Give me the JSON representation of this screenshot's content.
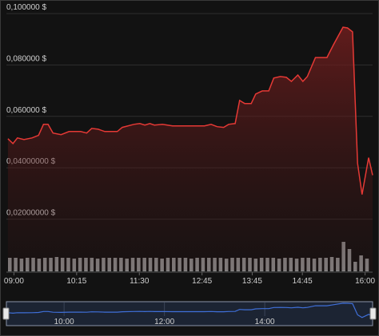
{
  "chart_data": {
    "type": "area",
    "xlim": [
      8.85,
      16.15
    ],
    "xticks": [
      {
        "value": 9,
        "label": "09:00"
      },
      {
        "value": 10.25,
        "label": "10:15"
      },
      {
        "value": 11.5,
        "label": "11:30"
      },
      {
        "value": 12.75,
        "label": "12:45"
      },
      {
        "value": 13.75,
        "label": "13:45"
      },
      {
        "value": 14.75,
        "label": "14:45"
      },
      {
        "value": 16,
        "label": "16:00"
      }
    ],
    "ylim": [
      0.0,
      0.1015
    ],
    "yticks": [
      {
        "value": 0.02,
        "label": "0,02000000 $"
      },
      {
        "value": 0.04,
        "label": "0,04000000 $"
      },
      {
        "value": 0.06,
        "label": "0,060000 $"
      },
      {
        "value": 0.08,
        "label": "0,080000 $"
      },
      {
        "value": 0.1,
        "label": "0,100000 $"
      }
    ],
    "grid": true,
    "series": [
      {
        "color": "#e53935",
        "x": [
          8.88,
          8.98,
          9.07,
          9.2,
          9.36,
          9.49,
          9.59,
          9.68,
          9.78,
          9.94,
          10.1,
          10.33,
          10.45,
          10.55,
          10.68,
          10.81,
          11.06,
          11.16,
          11.39,
          11.51,
          11.61,
          11.71,
          11.8,
          11.96,
          12.16,
          12.8,
          12.93,
          13.05,
          13.18,
          13.28,
          13.41,
          13.5,
          13.6,
          13.73,
          13.82,
          13.95,
          14.08,
          14.18,
          14.31,
          14.43,
          14.53,
          14.66,
          14.76,
          14.85,
          15.01,
          15.14,
          15.24,
          15.37,
          15.56,
          15.65,
          15.75,
          15.85,
          15.94,
          16.07,
          16.15
        ],
        "values": [
          0.0513,
          0.0494,
          0.0516,
          0.051,
          0.0516,
          0.0526,
          0.0569,
          0.0569,
          0.0535,
          0.0529,
          0.0541,
          0.0541,
          0.0535,
          0.0553,
          0.055,
          0.0541,
          0.0541,
          0.0557,
          0.0569,
          0.0572,
          0.0566,
          0.0572,
          0.0566,
          0.0569,
          0.0563,
          0.0563,
          0.0569,
          0.056,
          0.0557,
          0.0569,
          0.0572,
          0.0662,
          0.065,
          0.065,
          0.0687,
          0.0699,
          0.0699,
          0.0749,
          0.0755,
          0.0752,
          0.0736,
          0.0761,
          0.0736,
          0.0755,
          0.0829,
          0.0829,
          0.0829,
          0.0879,
          0.0947,
          0.0944,
          0.0929,
          0.0417,
          0.0296,
          0.0439,
          0.0371
        ]
      }
    ],
    "volume": {
      "color": "#8a8a8a",
      "values": [
        17,
        17,
        16,
        17,
        17,
        16,
        17,
        17,
        18,
        17,
        17,
        16,
        17,
        17,
        17,
        16,
        17,
        17,
        17,
        17,
        16,
        17,
        17,
        17,
        17,
        17,
        16,
        17,
        17,
        17,
        17,
        16,
        17,
        17,
        17,
        17,
        17,
        16,
        17,
        17,
        17,
        17,
        16,
        17,
        17,
        17,
        16,
        17,
        17,
        16,
        17,
        17,
        16,
        17,
        17,
        18,
        17,
        37,
        28,
        12,
        20,
        16
      ]
    },
    "navigator": {
      "color": "#3f6fd8",
      "xticks": [
        {
          "value": 10,
          "label": "10:00"
        },
        {
          "value": 12,
          "label": "12:00"
        },
        {
          "value": 14,
          "label": "14:00"
        }
      ]
    }
  }
}
